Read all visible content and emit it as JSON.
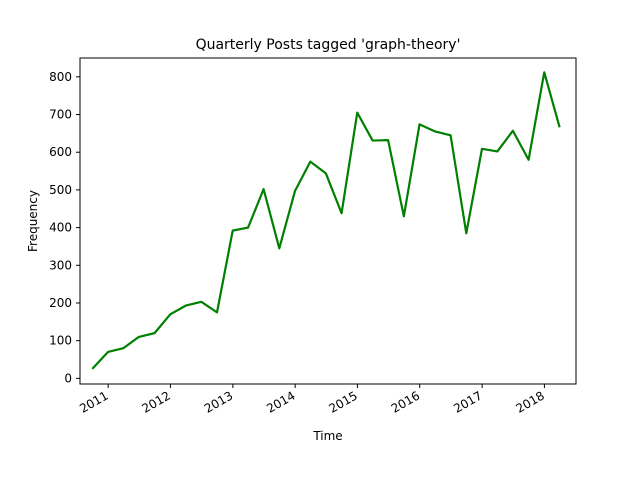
{
  "chart_data": {
    "type": "line",
    "title": "Quarterly Posts tagged 'graph-theory'",
    "xlabel": "Time",
    "ylabel": "Frequency",
    "ylim": [
      -15,
      850
    ],
    "xlim": [
      "2010-07-20",
      "2018-07-05"
    ],
    "yticks": [
      0,
      100,
      200,
      300,
      400,
      500,
      600,
      700,
      800
    ],
    "xticks": [
      {
        "date": "2011-01-01",
        "label": "2011"
      },
      {
        "date": "2012-01-01",
        "label": "2012"
      },
      {
        "date": "2013-01-01",
        "label": "2013"
      },
      {
        "date": "2014-01-01",
        "label": "2014"
      },
      {
        "date": "2015-01-01",
        "label": "2015"
      },
      {
        "date": "2016-01-01",
        "label": "2016"
      },
      {
        "date": "2017-01-01",
        "label": "2017"
      },
      {
        "date": "2018-01-01",
        "label": "2018"
      }
    ],
    "grid": false,
    "line_color": "#008000",
    "series": [
      {
        "x": [
          "2010-09-30",
          "2010-12-31",
          "2011-03-31",
          "2011-06-30",
          "2011-09-30",
          "2011-12-31",
          "2012-03-31",
          "2012-06-30",
          "2012-09-30",
          "2012-12-31",
          "2013-03-31",
          "2013-06-30",
          "2013-09-30",
          "2013-12-31",
          "2014-03-31",
          "2014-06-30",
          "2014-09-30",
          "2014-12-31",
          "2015-03-31",
          "2015-06-30",
          "2015-09-30",
          "2015-12-31",
          "2016-03-31",
          "2016-06-30",
          "2016-09-30",
          "2016-12-31",
          "2017-03-31",
          "2017-06-30",
          "2017-09-30",
          "2017-12-31",
          "2018-03-31"
        ],
        "values": [
          25,
          70,
          80,
          110,
          120,
          170,
          193,
          203,
          175,
          392,
          400,
          502,
          345,
          497,
          575,
          544,
          438,
          705,
          631,
          632,
          430,
          674,
          655,
          645,
          385,
          609,
          602,
          657,
          580,
          812,
          666
        ]
      }
    ]
  }
}
